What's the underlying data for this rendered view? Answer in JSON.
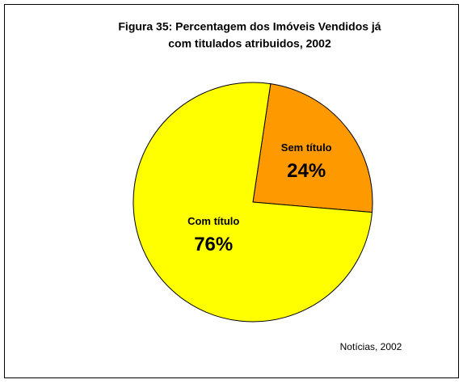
{
  "chart_data": {
    "type": "pie",
    "title": [
      "Figura 35: Percentagem dos Imóveis Vendidos já",
      "com titulados atribuidos, 2002"
    ],
    "categories": [
      "Sem título",
      "Com título"
    ],
    "values": [
      24,
      76
    ],
    "value_labels": [
      "24%",
      "76%"
    ],
    "colors": [
      "#ff9900",
      "#ffff00"
    ],
    "annotation": "Notícias, 2002"
  }
}
